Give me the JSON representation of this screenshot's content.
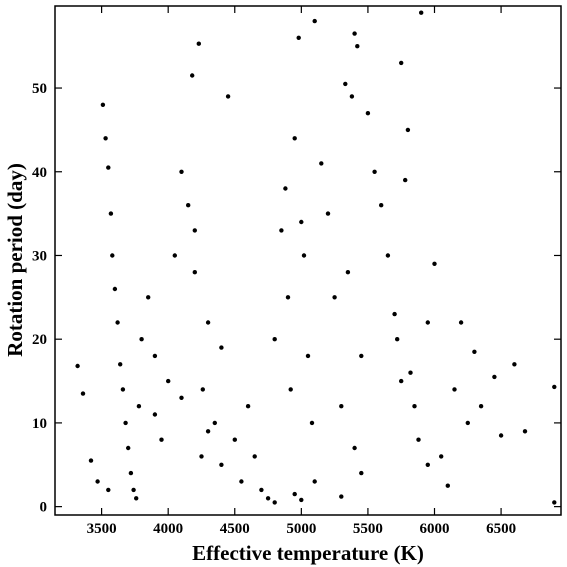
{
  "chart_data": {
    "type": "scatter",
    "title": "",
    "xlabel": "Effective temperature (K)",
    "ylabel": "Rotation period (day)",
    "xlim": [
      3150,
      6950
    ],
    "ylim": [
      -1,
      59.8
    ],
    "xticks": [
      3500,
      4000,
      4500,
      5000,
      5500,
      6000,
      6500
    ],
    "yticks": [
      0,
      10,
      20,
      30,
      40,
      50
    ],
    "grid": false,
    "legend": "none",
    "marker_color": "#000000",
    "series": [
      {
        "values_note_free": true,
        "x": [
          3320,
          3360,
          3420,
          3470,
          3510,
          3530,
          3550,
          3570,
          3580,
          3600,
          3620,
          3640,
          3660,
          3680,
          3700,
          3720,
          3740,
          3760,
          3780,
          3800,
          3850,
          3900,
          3950,
          4000,
          4050,
          4100,
          4150,
          4180,
          4200,
          4230,
          4260,
          4300,
          4350,
          4400,
          4450,
          4500,
          4550,
          4600,
          4650,
          4700,
          4750,
          4800,
          4850,
          4880,
          4900,
          4920,
          4950,
          4980,
          5000,
          5020,
          5050,
          5080,
          5100,
          5150,
          5200,
          5250,
          5300,
          5330,
          5350,
          5380,
          5400,
          5420,
          5450,
          5500,
          5550,
          5600,
          5650,
          5700,
          5720,
          5750,
          5780,
          5800,
          5820,
          5850,
          5880,
          5900,
          5950,
          6000,
          6050,
          6100,
          6150,
          6200,
          6250,
          6300,
          6350,
          6450,
          6500,
          6600,
          6680,
          6900,
          6900,
          3550,
          4200,
          4250,
          4300,
          4950,
          5100,
          5400,
          5450,
          5950,
          4800,
          5000,
          5300,
          5750,
          3900,
          4100,
          4400
        ],
        "y": [
          16.8,
          13.5,
          5.5,
          3.0,
          48.0,
          44.0,
          40.5,
          35.0,
          30.0,
          26.0,
          22.0,
          17.0,
          14.0,
          10.0,
          7.0,
          4.0,
          2.0,
          1.0,
          12.0,
          20.0,
          25.0,
          18.0,
          8.0,
          15.0,
          30.0,
          40.0,
          36.0,
          51.5,
          28.0,
          55.3,
          14.0,
          22.0,
          10.0,
          5.0,
          49.0,
          8.0,
          3.0,
          12.0,
          6.0,
          2.0,
          1.0,
          20.0,
          33.0,
          38.0,
          25.0,
          14.0,
          44.0,
          56.0,
          34.0,
          30.0,
          18.0,
          10.0,
          58.0,
          41.0,
          35.0,
          25.0,
          12.0,
          50.5,
          28.0,
          49.0,
          56.5,
          55.0,
          18.0,
          47.0,
          40.0,
          36.0,
          30.0,
          23.0,
          20.0,
          53.0,
          39.0,
          45.0,
          16.0,
          12.0,
          8.0,
          59.0,
          5.0,
          29.0,
          6.0,
          2.5,
          14.0,
          22.0,
          10.0,
          18.5,
          12.0,
          15.5,
          8.5,
          17.0,
          9.0,
          14.3,
          0.5,
          2.0,
          33.0,
          6.0,
          9.0,
          1.5,
          3.0,
          7.0,
          4.0,
          22.0,
          0.5,
          0.8,
          1.2,
          15.0,
          11.0,
          13.0,
          19.0
        ]
      }
    ]
  }
}
